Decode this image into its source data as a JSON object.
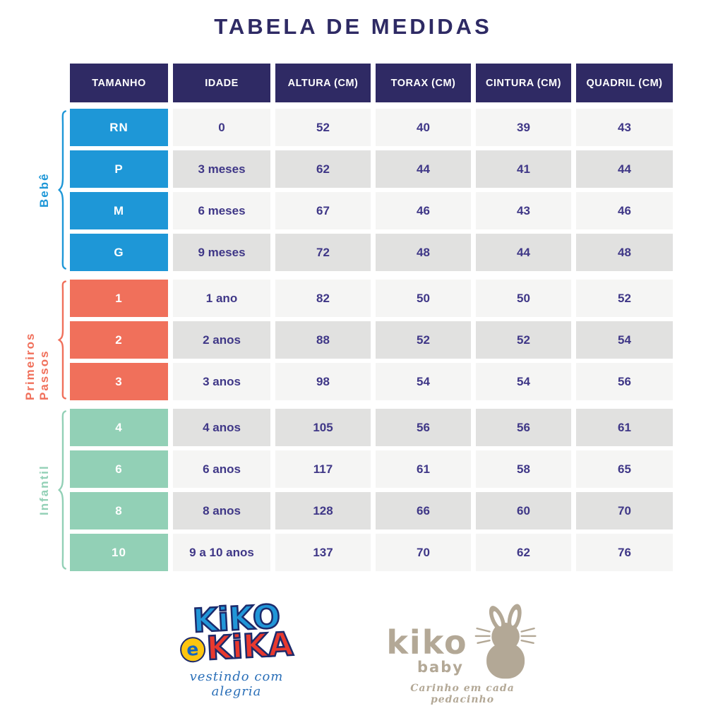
{
  "title": "TABELA DE MEDIDAS",
  "colors": {
    "header_navy": "#2f2a64",
    "value_text": "#3f3787",
    "row_light": "#f5f5f4",
    "row_dark": "#e1e1e0",
    "bebe_blue": "#1e97d7",
    "passos_coral": "#f0705b",
    "infantil_mint": "#92d0b6",
    "logo_beige": "#b3a896"
  },
  "table": {
    "columns": [
      "TAMANHO",
      "IDADE",
      "ALTURA (CM)",
      "TORAX (CM)",
      "CINTURA (CM)",
      "QUADRIL (CM)"
    ],
    "groups": [
      {
        "name": "Bebê",
        "color": "#1e97d7",
        "rows": [
          {
            "size": "RN",
            "idade": "0",
            "altura": "52",
            "torax": "40",
            "cintura": "39",
            "quadril": "43"
          },
          {
            "size": "P",
            "idade": "3 meses",
            "altura": "62",
            "torax": "44",
            "cintura": "41",
            "quadril": "44"
          },
          {
            "size": "M",
            "idade": "6 meses",
            "altura": "67",
            "torax": "46",
            "cintura": "43",
            "quadril": "46"
          },
          {
            "size": "G",
            "idade": "9 meses",
            "altura": "72",
            "torax": "48",
            "cintura": "44",
            "quadril": "48"
          }
        ]
      },
      {
        "name": "Primeiros Passos",
        "color": "#f0705b",
        "rows": [
          {
            "size": "1",
            "idade": "1 ano",
            "altura": "82",
            "torax": "50",
            "cintura": "50",
            "quadril": "52"
          },
          {
            "size": "2",
            "idade": "2 anos",
            "altura": "88",
            "torax": "52",
            "cintura": "52",
            "quadril": "54"
          },
          {
            "size": "3",
            "idade": "3 anos",
            "altura": "98",
            "torax": "54",
            "cintura": "54",
            "quadril": "56"
          }
        ]
      },
      {
        "name": "Infantil",
        "color": "#92d0b6",
        "rows": [
          {
            "size": "4",
            "idade": "4 anos",
            "altura": "105",
            "torax": "56",
            "cintura": "56",
            "quadril": "61"
          },
          {
            "size": "6",
            "idade": "6 anos",
            "altura": "117",
            "torax": "61",
            "cintura": "58",
            "quadril": "65"
          },
          {
            "size": "8",
            "idade": "8 anos",
            "altura": "128",
            "torax": "66",
            "cintura": "60",
            "quadril": "70"
          },
          {
            "size": "10",
            "idade": "9 a 10 anos",
            "altura": "137",
            "torax": "70",
            "cintura": "62",
            "quadril": "76"
          }
        ]
      }
    ]
  },
  "chart_data": {
    "type": "table",
    "title": "TABELA DE MEDIDAS",
    "columns": [
      "TAMANHO",
      "IDADE",
      "ALTURA (CM)",
      "TORAX (CM)",
      "CINTURA (CM)",
      "QUADRIL (CM)"
    ],
    "row_groups": [
      {
        "group": "Bebê",
        "rows": [
          [
            "RN",
            "0",
            52,
            40,
            39,
            43
          ],
          [
            "P",
            "3 meses",
            62,
            44,
            41,
            44
          ],
          [
            "M",
            "6 meses",
            67,
            46,
            43,
            46
          ],
          [
            "G",
            "9 meses",
            72,
            48,
            44,
            48
          ]
        ]
      },
      {
        "group": "Primeiros Passos",
        "rows": [
          [
            "1",
            "1 ano",
            82,
            50,
            50,
            52
          ],
          [
            "2",
            "2 anos",
            88,
            52,
            52,
            54
          ],
          [
            "3",
            "3 anos",
            98,
            54,
            54,
            56
          ]
        ]
      },
      {
        "group": "Infantil",
        "rows": [
          [
            "4",
            "4 anos",
            105,
            56,
            56,
            61
          ],
          [
            "6",
            "6 anos",
            117,
            61,
            58,
            65
          ],
          [
            "8",
            "8 anos",
            128,
            66,
            60,
            70
          ],
          [
            "10",
            "9 a 10 anos",
            137,
            70,
            62,
            76
          ]
        ]
      }
    ]
  },
  "footer": {
    "brand_logo": {
      "word1": "KiKO",
      "connector": "e",
      "word2": "KiKA",
      "tagline": "vestindo com alegria"
    },
    "baby_logo": {
      "name": "kiko",
      "sub": "baby",
      "tagline": "Carinho em cada pedacinho"
    }
  }
}
